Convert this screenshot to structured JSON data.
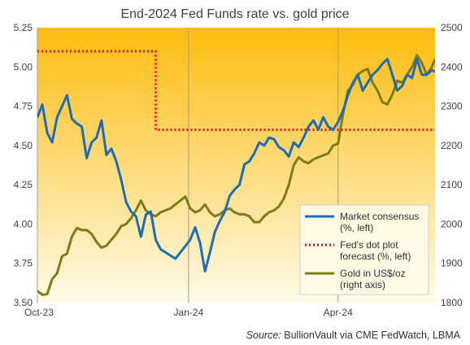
{
  "chart_data": {
    "type": "line",
    "title": "End-2024 Fed Funds rate vs. gold price",
    "source_label": "Source:",
    "source_text": "BullionVault via CME FedWatch, LBMA",
    "x_axis": {
      "tick_labels": [
        "Oct-23",
        "Jan-24",
        "Apr-24"
      ],
      "tick_dates": [
        "2023-10-02",
        "2024-01-02",
        "2024-04-02"
      ],
      "range": [
        "2023-10-02",
        "2024-05-31"
      ]
    },
    "y_left": {
      "range": [
        3.5,
        5.25
      ],
      "ticks": [
        "3.50",
        "3.75",
        "4.00",
        "4.25",
        "4.50",
        "4.75",
        "5.00",
        "5.25"
      ]
    },
    "y_right": {
      "range": [
        1800,
        2500
      ],
      "ticks": [
        "1800",
        "1900",
        "2000",
        "2100",
        "2200",
        "2300",
        "2400",
        "2500"
      ]
    },
    "background_gradient": {
      "top": "#fdbc0e",
      "bottom": "#fffbe8"
    },
    "legend": {
      "position": "lower-right",
      "entries": [
        {
          "label_lines": [
            "Market consensus",
            "(%, left)"
          ],
          "color": "#1f6cb4",
          "style": "solid"
        },
        {
          "label_lines": [
            "Fed's dot plot",
            "forecast (%, left)"
          ],
          "color": "#e0141e",
          "style": "dotted"
        },
        {
          "label_lines": [
            "Gold in US$/oz",
            "(right axis)"
          ],
          "color": "#7f7a16",
          "style": "solid"
        }
      ]
    },
    "series": [
      {
        "name": "Market consensus (%, left)",
        "axis": "left",
        "color": "#1f6cb4",
        "x": [
          "2023-10-02",
          "2023-10-05",
          "2023-10-08",
          "2023-10-11",
          "2023-10-14",
          "2023-10-17",
          "2023-10-20",
          "2023-10-23",
          "2023-10-26",
          "2023-10-29",
          "2023-11-01",
          "2023-11-04",
          "2023-11-07",
          "2023-11-10",
          "2023-11-13",
          "2023-11-16",
          "2023-11-19",
          "2023-11-22",
          "2023-11-25",
          "2023-11-28",
          "2023-12-01",
          "2023-12-04",
          "2023-12-07",
          "2023-12-10",
          "2023-12-13",
          "2023-12-16",
          "2023-12-19",
          "2023-12-22",
          "2023-12-25",
          "2023-12-28",
          "2023-12-31",
          "2024-01-03",
          "2024-01-06",
          "2024-01-09",
          "2024-01-12",
          "2024-01-15",
          "2024-01-18",
          "2024-01-21",
          "2024-01-24",
          "2024-01-27",
          "2024-01-30",
          "2024-02-02",
          "2024-02-05",
          "2024-02-08",
          "2024-02-11",
          "2024-02-14",
          "2024-02-17",
          "2024-02-20",
          "2024-02-23",
          "2024-02-26",
          "2024-02-29",
          "2024-03-03",
          "2024-03-06",
          "2024-03-09",
          "2024-03-12",
          "2024-03-15",
          "2024-03-18",
          "2024-03-21",
          "2024-03-24",
          "2024-03-27",
          "2024-03-30",
          "2024-04-02",
          "2024-04-05",
          "2024-04-08",
          "2024-04-11",
          "2024-04-14",
          "2024-04-17",
          "2024-04-20",
          "2024-04-23",
          "2024-04-26",
          "2024-04-29",
          "2024-05-02",
          "2024-05-05",
          "2024-05-08",
          "2024-05-11",
          "2024-05-14",
          "2024-05-17",
          "2024-05-20",
          "2024-05-23",
          "2024-05-26",
          "2024-05-29",
          "2024-05-31"
        ],
        "values": [
          4.68,
          4.76,
          4.58,
          4.52,
          4.68,
          4.75,
          4.82,
          4.67,
          4.64,
          4.62,
          4.42,
          4.52,
          4.55,
          4.66,
          4.44,
          4.48,
          4.4,
          4.28,
          4.14,
          4.08,
          4.05,
          3.92,
          4.06,
          4.08,
          3.9,
          3.84,
          3.82,
          3.8,
          3.78,
          3.82,
          3.86,
          3.9,
          3.98,
          3.88,
          3.7,
          3.82,
          3.95,
          4.02,
          4.08,
          4.18,
          4.22,
          4.25,
          4.38,
          4.4,
          4.45,
          4.52,
          4.5,
          4.55,
          4.54,
          4.49,
          4.47,
          4.43,
          4.52,
          4.49,
          4.55,
          4.62,
          4.66,
          4.6,
          4.68,
          4.62,
          4.6,
          4.65,
          4.72,
          4.82,
          4.9,
          4.95,
          4.85,
          4.9,
          4.95,
          4.98,
          5.02,
          5.05,
          4.95,
          4.85,
          4.88,
          4.95,
          4.93,
          5.05,
          4.95,
          4.95,
          4.98,
          4.97
        ]
      },
      {
        "name": "Fed's dot plot forecast (%, left)",
        "axis": "left",
        "color": "#e0141e",
        "x": [
          "2023-10-02",
          "2023-12-13",
          "2023-12-13",
          "2024-05-31"
        ],
        "values": [
          5.1,
          5.1,
          4.6,
          4.6
        ]
      },
      {
        "name": "Gold in US$/oz (right axis)",
        "axis": "right",
        "color": "#7f7a16",
        "x": [
          "2023-10-02",
          "2023-10-05",
          "2023-10-08",
          "2023-10-11",
          "2023-10-14",
          "2023-10-17",
          "2023-10-20",
          "2023-10-23",
          "2023-10-26",
          "2023-10-29",
          "2023-11-01",
          "2023-11-04",
          "2023-11-07",
          "2023-11-10",
          "2023-11-13",
          "2023-11-16",
          "2023-11-19",
          "2023-11-22",
          "2023-11-25",
          "2023-11-28",
          "2023-12-01",
          "2023-12-04",
          "2023-12-07",
          "2023-12-10",
          "2023-12-13",
          "2023-12-16",
          "2023-12-19",
          "2023-12-22",
          "2023-12-25",
          "2023-12-28",
          "2023-12-31",
          "2024-01-03",
          "2024-01-06",
          "2024-01-09",
          "2024-01-12",
          "2024-01-15",
          "2024-01-18",
          "2024-01-21",
          "2024-01-24",
          "2024-01-27",
          "2024-01-30",
          "2024-02-02",
          "2024-02-05",
          "2024-02-08",
          "2024-02-11",
          "2024-02-14",
          "2024-02-17",
          "2024-02-20",
          "2024-02-23",
          "2024-02-26",
          "2024-02-29",
          "2024-03-03",
          "2024-03-06",
          "2024-03-09",
          "2024-03-12",
          "2024-03-15",
          "2024-03-18",
          "2024-03-21",
          "2024-03-24",
          "2024-03-27",
          "2024-03-30",
          "2024-04-02",
          "2024-04-05",
          "2024-04-08",
          "2024-04-11",
          "2024-04-14",
          "2024-04-17",
          "2024-04-20",
          "2024-04-23",
          "2024-04-26",
          "2024-04-29",
          "2024-05-02",
          "2024-05-05",
          "2024-05-08",
          "2024-05-11",
          "2024-05-14",
          "2024-05-17",
          "2024-05-20",
          "2024-05-23",
          "2024-05-26",
          "2024-05-29",
          "2024-05-31"
        ],
        "values": [
          1830,
          1820,
          1822,
          1860,
          1875,
          1918,
          1925,
          1968,
          1990,
          1985,
          1985,
          1975,
          1955,
          1940,
          1945,
          1960,
          1975,
          1995,
          2000,
          2015,
          2035,
          2060,
          2035,
          2025,
          2020,
          2030,
          2035,
          2040,
          2050,
          2060,
          2070,
          2040,
          2030,
          2035,
          2050,
          2030,
          2020,
          2025,
          2035,
          2040,
          2030,
          2025,
          2025,
          2020,
          2005,
          2005,
          2020,
          2030,
          2035,
          2045,
          2065,
          2100,
          2150,
          2170,
          2160,
          2155,
          2165,
          2170,
          2175,
          2180,
          2200,
          2205,
          2280,
          2340,
          2355,
          2380,
          2390,
          2395,
          2360,
          2340,
          2310,
          2305,
          2330,
          2365,
          2360,
          2380,
          2400,
          2430,
          2410,
          2380,
          2400,
          2420
        ]
      }
    ]
  }
}
